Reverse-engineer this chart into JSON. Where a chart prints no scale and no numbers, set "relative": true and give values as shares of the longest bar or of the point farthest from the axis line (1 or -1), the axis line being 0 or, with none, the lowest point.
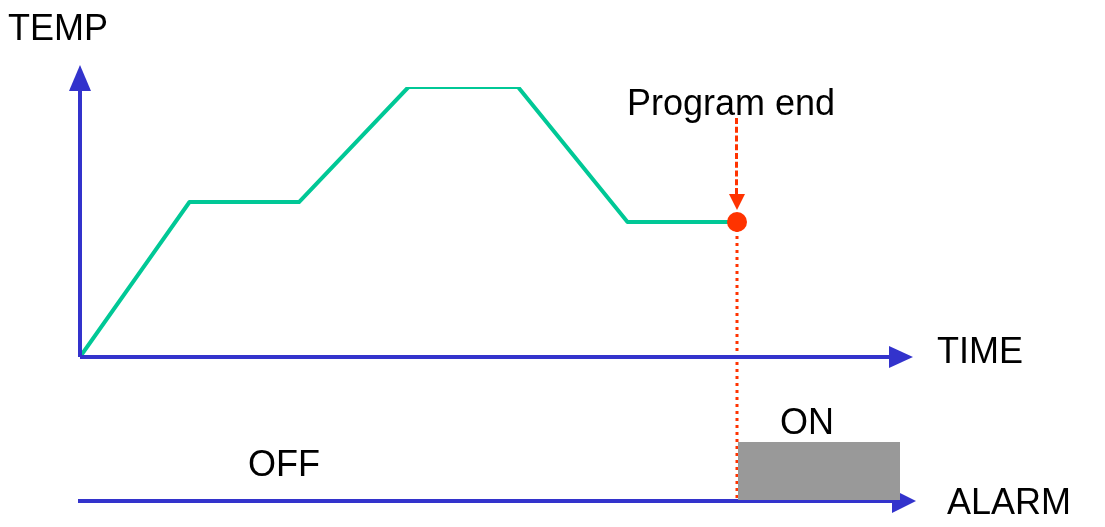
{
  "chart_data": [
    {
      "type": "line",
      "relative": true,
      "ylabel": "TEMP",
      "xlabel": "TIME",
      "marker": "none",
      "line_style": "solid",
      "categories": [
        null,
        null,
        null,
        null,
        null,
        null,
        null
      ],
      "series": [
        {
          "color": "#00c896",
          "values": [
            0,
            0.574,
            0.574,
            1,
            1,
            0.5,
            0.5
          ]
        }
      ],
      "annotations": [
        "Program end"
      ]
    },
    {
      "type": "other",
      "xlabel": "ALARM",
      "annotations": [
        "OFF",
        "ON"
      ]
    }
  ]
}
